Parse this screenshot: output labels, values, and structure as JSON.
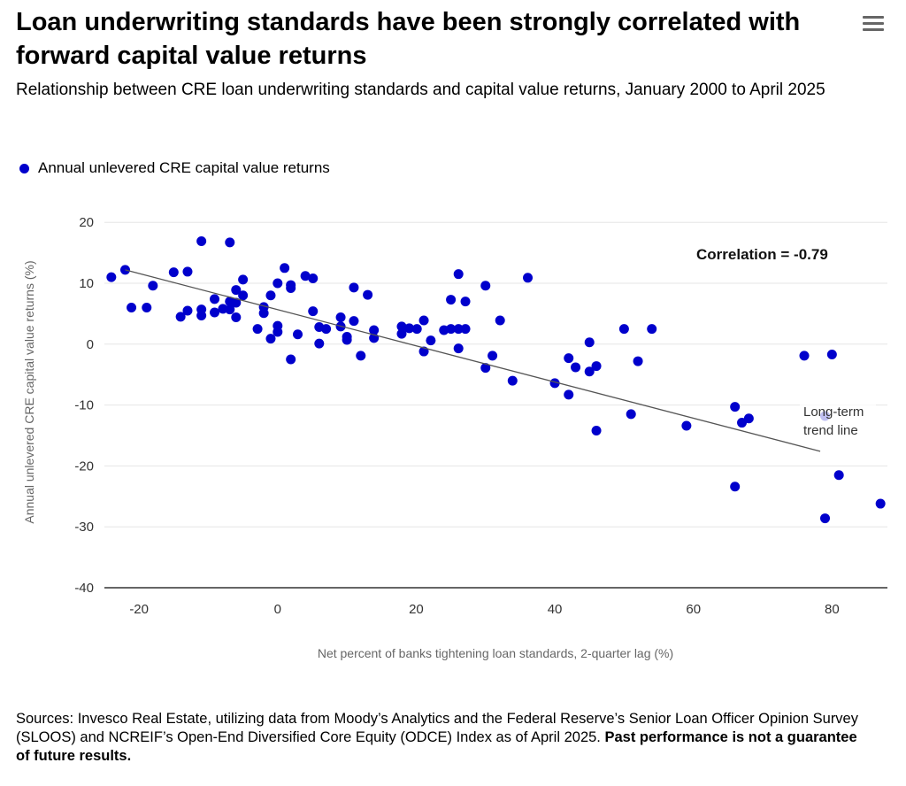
{
  "title": "Loan underwriting standards have been strongly correlated with forward capital value returns",
  "subtitle": "Relationship between CRE loan underwriting standards and capital value returns, January 2000 to April 2025",
  "menu_icon": "hamburger-menu-icon",
  "sources": {
    "text": "Sources: Invesco Real Estate, utilizing data from Moody’s Analytics and the Federal Reserve’s Senior Loan Officer Opinion Survey (SLOOS) and NCREIF’s Open-End Diversified Core Equity (ODCE) Index as of April 2025. ",
    "disclaimer": "Past performance is not a guarantee of future results."
  },
  "chart_data": {
    "type": "scatter",
    "xlabel": "Net percent of banks tightening loan standards, 2-quarter lag (%)",
    "ylabel": "Annual unlevered CRE capital value returns (%)",
    "xlim": [
      -25,
      88
    ],
    "ylim": [
      -40,
      21
    ],
    "x_ticks": [
      -20,
      0,
      20,
      40,
      60,
      80
    ],
    "y_ticks": [
      20,
      10,
      0,
      -10,
      -20,
      -30,
      -40
    ],
    "grid": "horizontal",
    "legend_position": "top-left",
    "annotations": {
      "correlation": "Correlation = -0.79",
      "trend_label_1": "Long-term",
      "trend_label_2": "trend line"
    },
    "trend_line": [
      [
        -22,
        12.2
      ],
      [
        78.3,
        -17.6
      ]
    ],
    "colors": {
      "points": "#0000cc",
      "trend": "#555555",
      "grid": "#e6e6e6"
    },
    "series": [
      {
        "name": "Annual unlevered CRE capital value returns",
        "points": [
          [
            -24,
            11
          ],
          [
            -22,
            12.2
          ],
          [
            -21.1,
            6
          ],
          [
            -18.9,
            6
          ],
          [
            -18,
            9.6
          ],
          [
            -15,
            11.8
          ],
          [
            -13,
            11.9
          ],
          [
            -14,
            4.5
          ],
          [
            -13,
            5.5
          ],
          [
            -11,
            16.9
          ],
          [
            -6.9,
            16.7
          ],
          [
            -11,
            5.7
          ],
          [
            -11,
            4.7
          ],
          [
            -9.1,
            7.4
          ],
          [
            -9.1,
            5.2
          ],
          [
            -7.9,
            5.8
          ],
          [
            -6.9,
            7
          ],
          [
            -6.9,
            5.7
          ],
          [
            -6,
            8.9
          ],
          [
            -6,
            6.8
          ],
          [
            -6,
            4.4
          ],
          [
            -5,
            10.6
          ],
          [
            -5,
            8
          ],
          [
            -2.9,
            2.5
          ],
          [
            -2,
            6.1
          ],
          [
            -2,
            5.1
          ],
          [
            -1,
            8
          ],
          [
            -1,
            0.9
          ],
          [
            0,
            10
          ],
          [
            0,
            3
          ],
          [
            0,
            2
          ],
          [
            1,
            12.5
          ],
          [
            1.9,
            9.7
          ],
          [
            1.9,
            9.2
          ],
          [
            2.9,
            1.6
          ],
          [
            1.9,
            -2.5
          ],
          [
            4,
            11.2
          ],
          [
            5.1,
            10.8
          ],
          [
            5.1,
            5.4
          ],
          [
            6,
            2.8
          ],
          [
            7,
            2.5
          ],
          [
            6,
            0.1
          ],
          [
            9.1,
            4.4
          ],
          [
            9.1,
            2.9
          ],
          [
            10,
            1.2
          ],
          [
            10,
            0.7
          ],
          [
            11,
            9.3
          ],
          [
            11,
            3.8
          ],
          [
            12,
            -1.9
          ],
          [
            13,
            8.1
          ],
          [
            13.9,
            2.3
          ],
          [
            13.9,
            1
          ],
          [
            17.9,
            2.9
          ],
          [
            17.9,
            1.7
          ],
          [
            19,
            2.6
          ],
          [
            20.1,
            2.5
          ],
          [
            21.1,
            3.9
          ],
          [
            22.1,
            0.6
          ],
          [
            21.1,
            -1.2
          ],
          [
            24,
            2.3
          ],
          [
            25,
            7.3
          ],
          [
            25,
            2.5
          ],
          [
            26.1,
            11.5
          ],
          [
            26.1,
            2.5
          ],
          [
            27.1,
            7
          ],
          [
            27.1,
            2.5
          ],
          [
            26.1,
            -0.7
          ],
          [
            30,
            9.6
          ],
          [
            31,
            -1.9
          ],
          [
            30,
            -3.9
          ],
          [
            32.1,
            3.9
          ],
          [
            36.1,
            10.9
          ],
          [
            33.9,
            -6
          ],
          [
            40,
            -6.4
          ],
          [
            42,
            -2.3
          ],
          [
            42,
            -8.3
          ],
          [
            43,
            -3.8
          ],
          [
            45,
            0.3
          ],
          [
            45,
            -4.5
          ],
          [
            46,
            -3.6
          ],
          [
            46,
            -14.2
          ],
          [
            50,
            2.5
          ],
          [
            51,
            -11.5
          ],
          [
            52,
            -2.8
          ],
          [
            54,
            2.5
          ],
          [
            59,
            -13.4
          ],
          [
            66,
            -10.3
          ],
          [
            66,
            -23.4
          ],
          [
            67,
            -12.9
          ],
          [
            68,
            -12.2
          ],
          [
            76,
            -1.9
          ],
          [
            80,
            -1.7
          ],
          [
            79,
            -11.8
          ],
          [
            79,
            -28.6
          ],
          [
            81,
            -21.5
          ],
          [
            87,
            -26.2
          ]
        ]
      }
    ]
  }
}
